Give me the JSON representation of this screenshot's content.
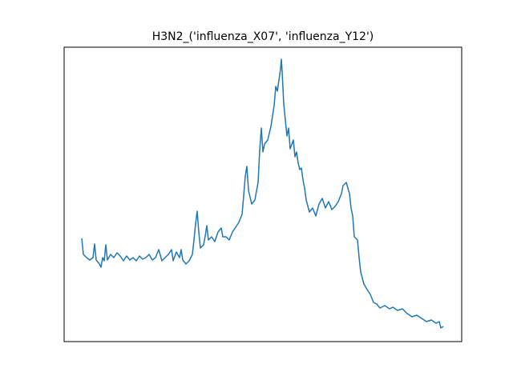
{
  "chart_data": {
    "type": "line",
    "title": "H3N2_('influenza_X07', 'influenza_Y12')",
    "xlim": [
      -22,
      474
    ],
    "ylim": [
      0,
      368
    ],
    "x": [
      0,
      2,
      6,
      10,
      14,
      16,
      18,
      22,
      24,
      26,
      28,
      30,
      32,
      36,
      40,
      44,
      48,
      52,
      56,
      60,
      64,
      68,
      72,
      76,
      80,
      84,
      88,
      92,
      96,
      100,
      104,
      108,
      112,
      114,
      118,
      122,
      124,
      126,
      130,
      134,
      138,
      140,
      142,
      144,
      146,
      148,
      152,
      154,
      156,
      158,
      162,
      166,
      170,
      174,
      176,
      180,
      184,
      188,
      192,
      196,
      200,
      202,
      204,
      206,
      208,
      212,
      216,
      220,
      222,
      224,
      226,
      228,
      232,
      236,
      240,
      242,
      244,
      246,
      248,
      249,
      250,
      252,
      254,
      256,
      258,
      260,
      264,
      266,
      268,
      270,
      272,
      274,
      276,
      278,
      280,
      284,
      288,
      292,
      296,
      300,
      304,
      308,
      312,
      316,
      320,
      324,
      326,
      330,
      334,
      336,
      338,
      340,
      344,
      346,
      348,
      352,
      356,
      360,
      364,
      368,
      372,
      378,
      384,
      388,
      394,
      400,
      406,
      412,
      418,
      424,
      430,
      436,
      442,
      446,
      448,
      451
    ],
    "series": [
      {
        "color": "#1f77b4",
        "values": [
          129,
          109,
          105,
          102,
          105,
          122,
          102,
          97,
          93,
          105,
          101,
          121,
          102,
          109,
          105,
          111,
          107,
          101,
          107,
          102,
          105,
          101,
          107,
          103,
          105,
          109,
          102,
          105,
          115,
          101,
          105,
          109,
          115,
          101,
          112,
          105,
          115,
          102,
          97,
          101,
          109,
          127,
          147,
          163,
          137,
          117,
          121,
          132,
          145,
          127,
          131,
          125,
          137,
          142,
          131,
          131,
          127,
          137,
          143,
          149,
          159,
          182,
          207,
          219,
          189,
          172,
          177,
          199,
          239,
          267,
          237,
          247,
          252,
          269,
          295,
          319,
          313,
          327,
          341,
          353,
          337,
          297,
          277,
          257,
          267,
          241,
          252,
          231,
          237,
          223,
          215,
          217,
          202,
          192,
          177,
          162,
          167,
          157,
          172,
          179,
          167,
          175,
          165,
          169,
          175,
          185,
          195,
          199,
          185,
          167,
          157,
          131,
          127,
          105,
          87,
          72,
          65,
          59,
          49,
          47,
          42,
          45,
          41,
          43,
          39,
          41,
          35,
          31,
          33,
          29,
          25,
          27,
          23,
          25,
          17,
          19
        ]
      }
    ]
  }
}
